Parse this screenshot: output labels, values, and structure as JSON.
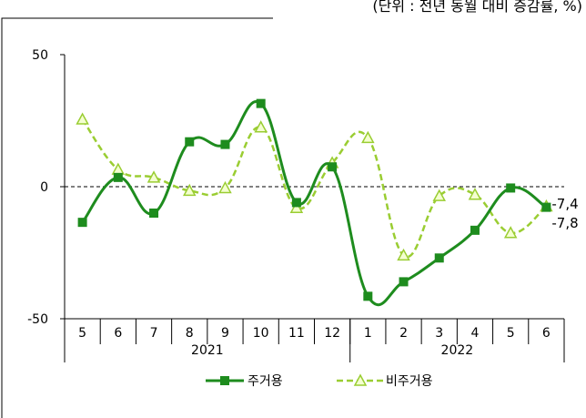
{
  "unit_note": "(단위 : 전년 동월 대비 증감률, %)",
  "chart_data": {
    "type": "line",
    "categories": [
      "5",
      "6",
      "7",
      "8",
      "9",
      "10",
      "11",
      "12",
      "1",
      "2",
      "3",
      "4",
      "5",
      "6"
    ],
    "year_groups": [
      {
        "label": "2021",
        "start": 0,
        "end": 7
      },
      {
        "label": "2022",
        "start": 8,
        "end": 13
      }
    ],
    "ylim": [
      -50,
      50
    ],
    "yticks": [
      "50",
      "0",
      "-50"
    ],
    "xlabel": "",
    "ylabel": "",
    "zero_reference_line": true,
    "grid": false,
    "legend_position": "bottom",
    "series": [
      {
        "name": "주거용",
        "values": [
          -13.5,
          3.5,
          -10,
          17,
          16,
          31.5,
          -6,
          7.5,
          -41.5,
          -36,
          -27,
          -16.5,
          -0.5,
          -7.8
        ],
        "color": "#1e8c1e",
        "style": "solid",
        "marker": "square"
      },
      {
        "name": "비주거용",
        "values": [
          25.5,
          6.5,
          3.5,
          -1.5,
          -0.5,
          22.5,
          -8,
          9,
          18.5,
          -26,
          -3.5,
          -3,
          -17.5,
          -7.4
        ],
        "color": "#9acd32",
        "style": "dashed",
        "marker": "triangle"
      }
    ],
    "end_labels": [
      "-7,4",
      "-7,8"
    ]
  }
}
